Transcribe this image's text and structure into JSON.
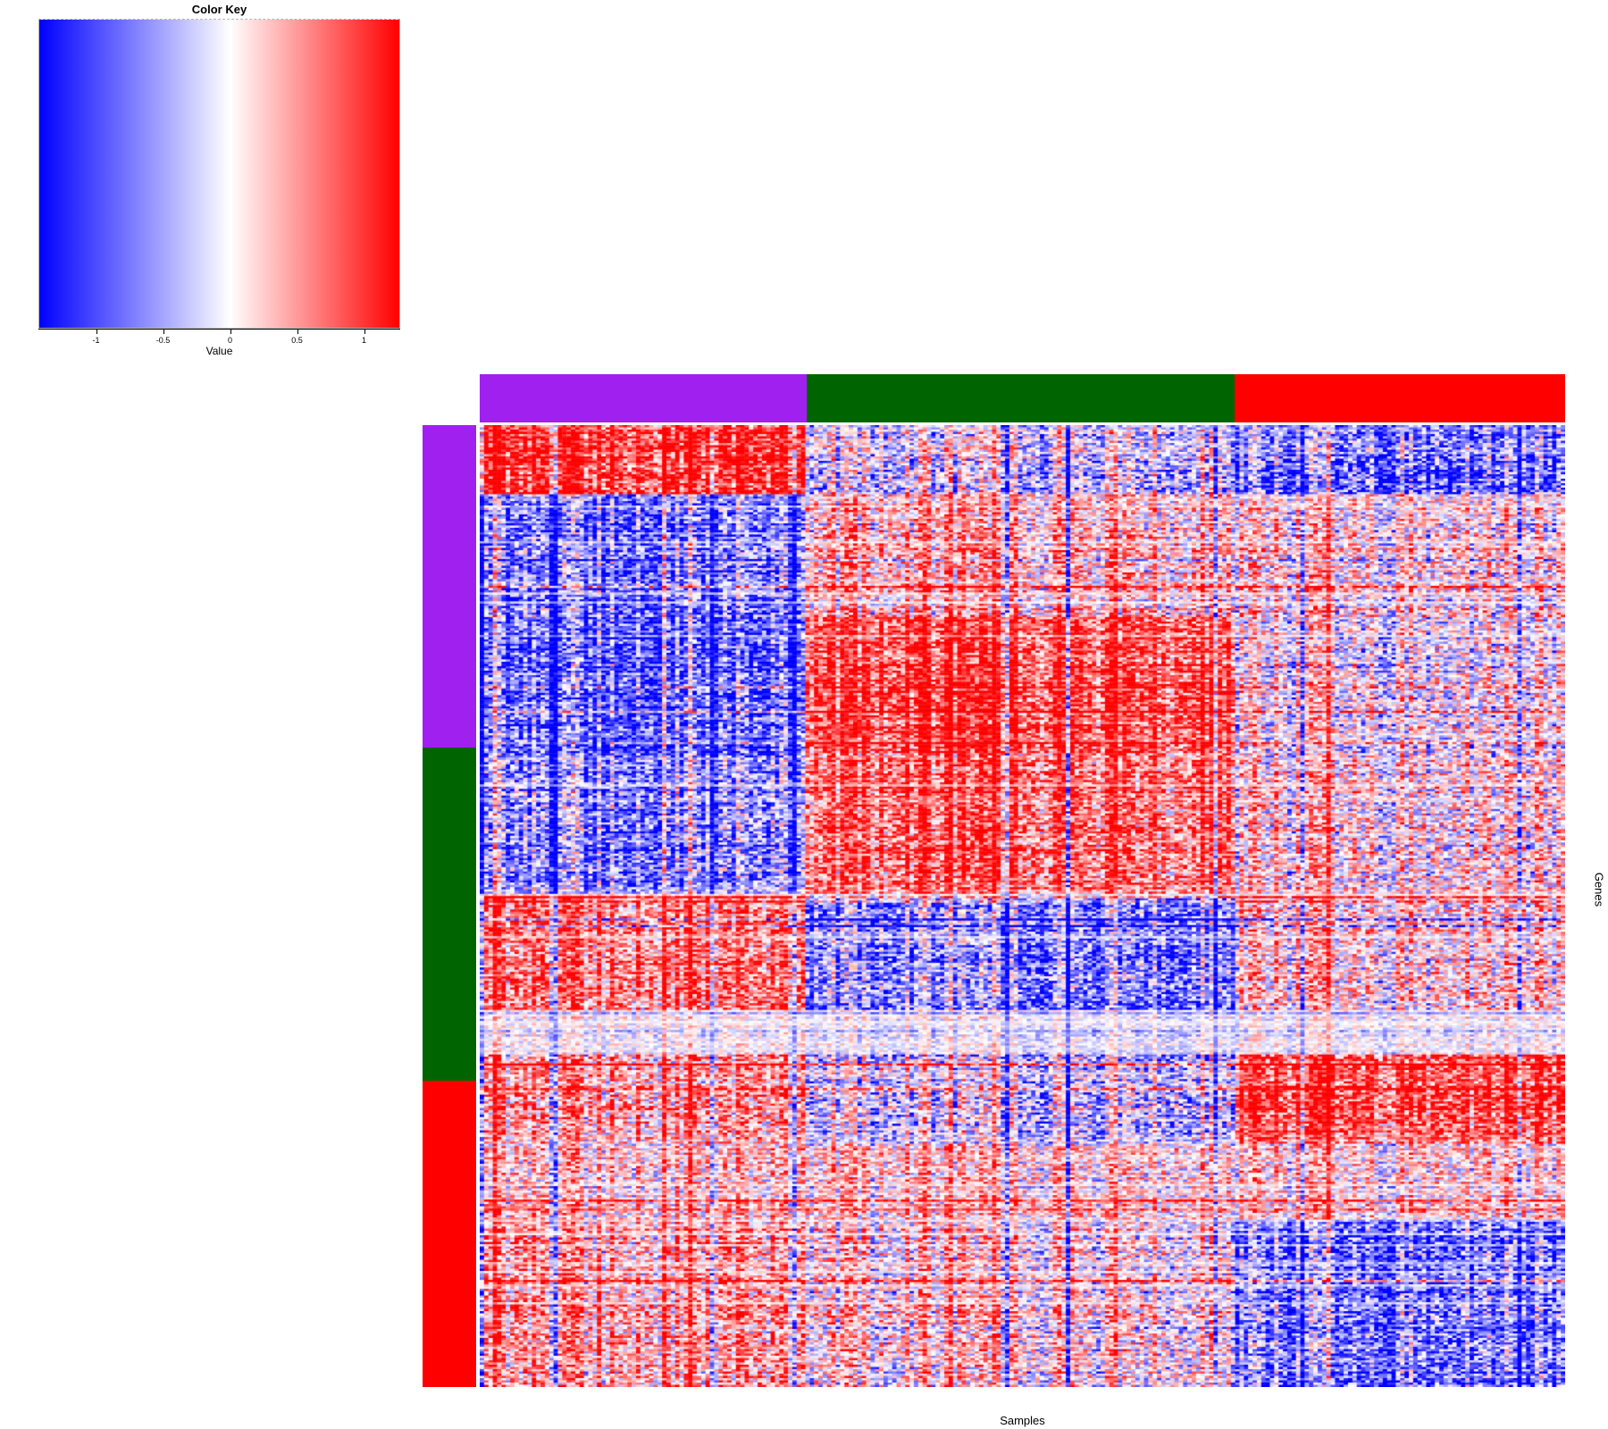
{
  "color_key": {
    "title": "Color Key",
    "axis_label": "Value",
    "ticks": [
      {
        "label": "-1",
        "value": -1
      },
      {
        "label": "-0.5",
        "value": -0.5
      },
      {
        "label": "0",
        "value": 0
      },
      {
        "label": "0.5",
        "value": 0.5
      },
      {
        "label": "1",
        "value": 1
      }
    ],
    "range_min": -1.43,
    "range_max": 1.27,
    "gradient_colors": [
      "#0000ff",
      "#ffffff",
      "#ff0000"
    ]
  },
  "chart_data": {
    "type": "heatmap",
    "xlabel": "Samples",
    "ylabel": "Genes",
    "colorscale": {
      "min": -1.43,
      "max": 1.27,
      "negative": "#0000ff",
      "zero": "#ffffff",
      "positive": "#ff0000"
    },
    "column_side_groups": [
      {
        "name": "purple",
        "color": "#a020f0",
        "fraction": 0.3012
      },
      {
        "name": "green",
        "color": "#006400",
        "fraction": 0.3943
      },
      {
        "name": "red",
        "color": "#ff0000",
        "fraction": 0.3045
      }
    ],
    "row_side_groups": [
      {
        "name": "purple",
        "color": "#a020f0",
        "fraction": 0.3352
      },
      {
        "name": "green",
        "color": "#006400",
        "fraction": 0.3464
      },
      {
        "name": "red",
        "color": "#ff0000",
        "fraction": 0.3184
      }
    ],
    "n_columns": 250,
    "n_rows": 431,
    "block_means": {
      "description": "Approximate mean Value per column group [purple, green, red] within each horizontal stratum of rows (stratum given as cumulative fraction of row axis)",
      "row_strata": [
        {
          "until": 0.073,
          "means": [
            0.85,
            -0.12,
            -0.5
          ],
          "damp": 1.0
        },
        {
          "until": 0.2,
          "means": [
            -0.5,
            0.28,
            0.12
          ],
          "damp": 1.0
        },
        {
          "until": 0.34,
          "means": [
            -0.62,
            0.78,
            0.02
          ],
          "damp": 1.0
        },
        {
          "until": 0.487,
          "means": [
            -0.42,
            0.62,
            0.12
          ],
          "damp": 1.0
        },
        {
          "until": 0.607,
          "means": [
            0.55,
            -0.42,
            0.18
          ],
          "damp": 1.0
        },
        {
          "until": 0.655,
          "means": [
            0.06,
            -0.06,
            0.02
          ],
          "damp": 0.45
        },
        {
          "until": 0.747,
          "means": [
            0.38,
            -0.12,
            0.72
          ],
          "damp": 1.0
        },
        {
          "until": 0.825,
          "means": [
            0.22,
            0.22,
            0.18
          ],
          "damp": 0.8
        },
        {
          "until": 1.001,
          "means": [
            0.35,
            0.12,
            -0.52
          ],
          "damp": 1.0
        }
      ]
    },
    "texture": {
      "seed": 20240601,
      "noise": 0.62,
      "col_offset_spread": 0.36,
      "blue_streak_col_prob": 0.055,
      "red_streak_col_prob": 0.05,
      "pale_row_prob": 0.06,
      "dark_row_prob": 0.04
    }
  }
}
